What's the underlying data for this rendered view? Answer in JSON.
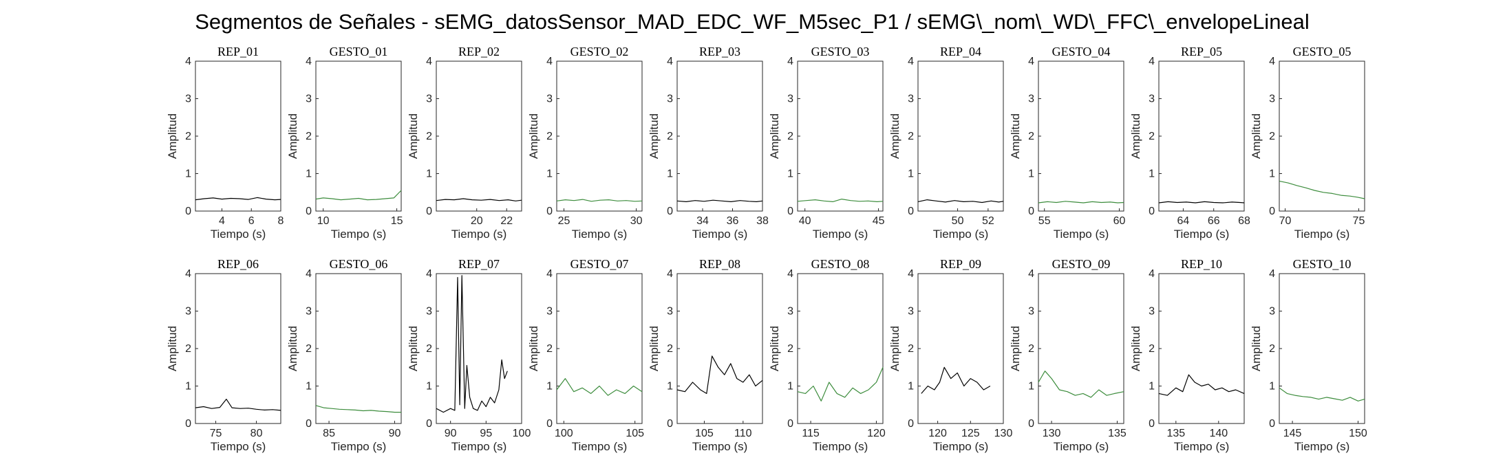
{
  "figure": {
    "title": "Segmentos de Señales - sEMG_datosSensor_MAD_EDC_WF_M5sec_P1 / sEMG\\_nom\\_WD\\_FFC\\_envelopeLineal"
  },
  "colors": {
    "rep": "#000000",
    "gesto": "#3c8c3c",
    "axis": "#262626"
  },
  "chart_data": [
    {
      "type": "line",
      "title": "REP_01",
      "xlabel": "Tiempo (s)",
      "ylabel": "Amplitud",
      "xlim": [
        2.2,
        8
      ],
      "ylim": [
        0,
        4
      ],
      "xticks": [
        4,
        6,
        8
      ],
      "yticks": [
        0,
        1,
        2,
        3,
        4
      ],
      "color": "rep",
      "series": [
        {
          "x": [
            2.2,
            2.8,
            3.4,
            4,
            4.6,
            5.2,
            5.8,
            6.4,
            7,
            7.6,
            8
          ],
          "y": [
            0.3,
            0.33,
            0.35,
            0.32,
            0.34,
            0.33,
            0.31,
            0.36,
            0.32,
            0.3,
            0.31
          ]
        }
      ]
    },
    {
      "type": "line",
      "title": "GESTO_01",
      "xlabel": "Tiempo (s)",
      "ylabel": "Amplitud",
      "xlim": [
        9.5,
        15.3
      ],
      "ylim": [
        0,
        4
      ],
      "xticks": [
        10,
        15
      ],
      "yticks": [
        0,
        1,
        2,
        3,
        4
      ],
      "color": "gesto",
      "series": [
        {
          "x": [
            9.5,
            10,
            10.6,
            11.2,
            11.8,
            12.4,
            13,
            13.6,
            14.2,
            14.8,
            15.3
          ],
          "y": [
            0.32,
            0.35,
            0.33,
            0.3,
            0.32,
            0.34,
            0.3,
            0.31,
            0.33,
            0.35,
            0.55
          ]
        }
      ]
    },
    {
      "type": "line",
      "title": "REP_02",
      "xlabel": "Tiempo (s)",
      "ylabel": "Amplitud",
      "xlim": [
        17.3,
        23
      ],
      "ylim": [
        0,
        4
      ],
      "xticks": [
        20,
        22
      ],
      "yticks": [
        0,
        1,
        2,
        3,
        4
      ],
      "color": "rep",
      "series": [
        {
          "x": [
            17.3,
            17.9,
            18.5,
            19.1,
            19.7,
            20.3,
            20.9,
            21.5,
            22.1,
            22.6,
            23
          ],
          "y": [
            0.28,
            0.31,
            0.3,
            0.33,
            0.3,
            0.29,
            0.31,
            0.28,
            0.3,
            0.27,
            0.29
          ]
        }
      ]
    },
    {
      "type": "line",
      "title": "GESTO_02",
      "xlabel": "Tiempo (s)",
      "ylabel": "Amplitud",
      "xlim": [
        24.5,
        30.4
      ],
      "ylim": [
        0,
        4
      ],
      "xticks": [
        25,
        30
      ],
      "yticks": [
        0,
        1,
        2,
        3,
        4
      ],
      "color": "gesto",
      "series": [
        {
          "x": [
            24.5,
            25.1,
            25.7,
            26.3,
            26.9,
            27.5,
            28.1,
            28.7,
            29.3,
            29.9,
            30.4
          ],
          "y": [
            0.27,
            0.3,
            0.28,
            0.31,
            0.26,
            0.29,
            0.3,
            0.27,
            0.28,
            0.26,
            0.27
          ]
        }
      ]
    },
    {
      "type": "line",
      "title": "REP_03",
      "xlabel": "Tiempo (s)",
      "ylabel": "Amplitud",
      "xlim": [
        32.3,
        38
      ],
      "ylim": [
        0,
        4
      ],
      "xticks": [
        34,
        36,
        38
      ],
      "yticks": [
        0,
        1,
        2,
        3,
        4
      ],
      "color": "rep",
      "series": [
        {
          "x": [
            32.3,
            32.9,
            33.5,
            34.1,
            34.7,
            35.3,
            35.9,
            36.5,
            37.1,
            37.6,
            38
          ],
          "y": [
            0.27,
            0.25,
            0.28,
            0.26,
            0.29,
            0.27,
            0.25,
            0.28,
            0.26,
            0.25,
            0.27
          ]
        }
      ]
    },
    {
      "type": "line",
      "title": "GESTO_03",
      "xlabel": "Tiempo (s)",
      "ylabel": "Amplitud",
      "xlim": [
        39.5,
        45.3
      ],
      "ylim": [
        0,
        4
      ],
      "xticks": [
        40,
        45
      ],
      "yticks": [
        0,
        1,
        2,
        3,
        4
      ],
      "color": "gesto",
      "series": [
        {
          "x": [
            39.5,
            40.1,
            40.7,
            41.3,
            41.9,
            42.5,
            43.1,
            43.7,
            44.3,
            44.9,
            45.3
          ],
          "y": [
            0.26,
            0.28,
            0.3,
            0.27,
            0.25,
            0.32,
            0.28,
            0.26,
            0.27,
            0.25,
            0.26
          ]
        }
      ]
    },
    {
      "type": "line",
      "title": "REP_04",
      "xlabel": "Tiempo (s)",
      "ylabel": "Amplitud",
      "xlim": [
        47.4,
        53
      ],
      "ylim": [
        0,
        4
      ],
      "xticks": [
        50,
        52
      ],
      "yticks": [
        0,
        1,
        2,
        3,
        4
      ],
      "color": "rep",
      "series": [
        {
          "x": [
            47.4,
            48,
            48.6,
            49.2,
            49.8,
            50.4,
            51,
            51.6,
            52.2,
            52.7,
            53
          ],
          "y": [
            0.25,
            0.3,
            0.27,
            0.24,
            0.28,
            0.25,
            0.26,
            0.23,
            0.27,
            0.24,
            0.26
          ]
        }
      ]
    },
    {
      "type": "line",
      "title": "GESTO_04",
      "xlabel": "Tiempo (s)",
      "ylabel": "Amplitud",
      "xlim": [
        54.6,
        60.3
      ],
      "ylim": [
        0,
        4
      ],
      "xticks": [
        55,
        60
      ],
      "yticks": [
        0,
        1,
        2,
        3,
        4
      ],
      "color": "gesto",
      "series": [
        {
          "x": [
            54.6,
            55.2,
            55.8,
            56.4,
            57,
            57.6,
            58.2,
            58.8,
            59.4,
            59.9,
            60.3
          ],
          "y": [
            0.22,
            0.25,
            0.23,
            0.26,
            0.24,
            0.22,
            0.25,
            0.23,
            0.24,
            0.22,
            0.23
          ]
        }
      ]
    },
    {
      "type": "line",
      "title": "REP_05",
      "xlabel": "Tiempo (s)",
      "ylabel": "Amplitud",
      "xlim": [
        62.4,
        68
      ],
      "ylim": [
        0,
        4
      ],
      "xticks": [
        64,
        66,
        68
      ],
      "yticks": [
        0,
        1,
        2,
        3,
        4
      ],
      "color": "rep",
      "series": [
        {
          "x": [
            62.4,
            63,
            63.6,
            64.2,
            64.8,
            65.4,
            66,
            66.6,
            67.2,
            67.7,
            68
          ],
          "y": [
            0.22,
            0.25,
            0.23,
            0.24,
            0.22,
            0.25,
            0.23,
            0.22,
            0.24,
            0.23,
            0.22
          ]
        }
      ]
    },
    {
      "type": "line",
      "title": "GESTO_05",
      "xlabel": "Tiempo (s)",
      "ylabel": "Amplitud",
      "xlim": [
        69.6,
        75.4
      ],
      "ylim": [
        0,
        4
      ],
      "xticks": [
        70,
        75
      ],
      "yticks": [
        0,
        1,
        2,
        3,
        4
      ],
      "color": "gesto",
      "series": [
        {
          "x": [
            69.6,
            70.2,
            70.8,
            71.4,
            72,
            72.6,
            73.2,
            73.8,
            74.4,
            74.9,
            75.4
          ],
          "y": [
            0.8,
            0.75,
            0.68,
            0.62,
            0.55,
            0.5,
            0.47,
            0.42,
            0.4,
            0.37,
            0.33
          ]
        }
      ]
    },
    {
      "type": "line",
      "title": "REP_06",
      "xlabel": "Tiempo (s)",
      "ylabel": "Amplitud",
      "xlim": [
        72.5,
        83
      ],
      "ylim": [
        0,
        4
      ],
      "xticks": [
        75,
        80
      ],
      "yticks": [
        0,
        1,
        2,
        3,
        4
      ],
      "color": "rep",
      "series": [
        {
          "x": [
            72.5,
            73.5,
            74.5,
            75.5,
            76.3,
            77,
            78,
            79,
            80,
            81,
            82,
            83
          ],
          "y": [
            0.42,
            0.45,
            0.4,
            0.43,
            0.65,
            0.42,
            0.4,
            0.41,
            0.38,
            0.36,
            0.37,
            0.35
          ]
        }
      ]
    },
    {
      "type": "line",
      "title": "GESTO_06",
      "xlabel": "Tiempo (s)",
      "ylabel": "Amplitud",
      "xlim": [
        84,
        90.5
      ],
      "ylim": [
        0,
        4
      ],
      "xticks": [
        85,
        90
      ],
      "yticks": [
        0,
        1,
        2,
        3,
        4
      ],
      "color": "gesto",
      "series": [
        {
          "x": [
            84,
            84.6,
            85.2,
            85.8,
            86.4,
            87,
            87.6,
            88.2,
            88.8,
            89.4,
            90,
            90.5
          ],
          "y": [
            0.48,
            0.42,
            0.4,
            0.38,
            0.37,
            0.36,
            0.34,
            0.35,
            0.33,
            0.32,
            0.3,
            0.3
          ]
        }
      ]
    },
    {
      "type": "line",
      "title": "REP_07",
      "xlabel": "Tiempo (s)",
      "ylabel": "Amplitud",
      "xlim": [
        88,
        100
      ],
      "ylim": [
        0,
        4
      ],
      "xticks": [
        90,
        95,
        100
      ],
      "yticks": [
        0,
        1,
        2,
        3,
        4
      ],
      "color": "rep",
      "series": [
        {
          "x": [
            88,
            89,
            90,
            90.6,
            91,
            91.3,
            91.6,
            92,
            92.3,
            92.7,
            93.2,
            93.8,
            94.4,
            95,
            95.6,
            96.2,
            96.8,
            97.2,
            97.6,
            98
          ],
          "y": [
            0.4,
            0.3,
            0.4,
            0.35,
            3.9,
            0.5,
            3.95,
            0.4,
            1.55,
            0.7,
            0.4,
            0.35,
            0.6,
            0.45,
            0.7,
            0.55,
            0.9,
            1.7,
            1.2,
            1.4
          ]
        }
      ]
    },
    {
      "type": "line",
      "title": "GESTO_07",
      "xlabel": "Tiempo (s)",
      "ylabel": "Amplitud",
      "xlim": [
        99.5,
        105.5
      ],
      "ylim": [
        0,
        4
      ],
      "xticks": [
        100,
        105
      ],
      "yticks": [
        0,
        1,
        2,
        3,
        4
      ],
      "color": "gesto",
      "series": [
        {
          "x": [
            99.5,
            100.1,
            100.7,
            101.3,
            101.9,
            102.5,
            103.1,
            103.7,
            104.3,
            104.9,
            105.5
          ],
          "y": [
            0.9,
            1.2,
            0.85,
            0.95,
            0.8,
            1,
            0.75,
            0.9,
            0.8,
            1,
            0.85
          ]
        }
      ]
    },
    {
      "type": "line",
      "title": "REP_08",
      "xlabel": "Tiempo (s)",
      "ylabel": "Amplitud",
      "xlim": [
        101.5,
        112.5
      ],
      "ylim": [
        0,
        4
      ],
      "xticks": [
        105,
        110
      ],
      "yticks": [
        0,
        1,
        2,
        3,
        4
      ],
      "color": "rep",
      "series": [
        {
          "x": [
            101.5,
            102.5,
            103.5,
            104.5,
            105.3,
            106,
            106.8,
            107.6,
            108.4,
            109.2,
            110,
            110.8,
            111.6,
            112.5
          ],
          "y": [
            0.9,
            0.85,
            1.1,
            0.9,
            0.8,
            1.8,
            1.5,
            1.3,
            1.6,
            1.2,
            1.1,
            1.3,
            1,
            1.15
          ]
        }
      ]
    },
    {
      "type": "line",
      "title": "GESTO_08",
      "xlabel": "Tiempo (s)",
      "ylabel": "Amplitud",
      "xlim": [
        114,
        120.5
      ],
      "ylim": [
        0,
        4
      ],
      "xticks": [
        115,
        120
      ],
      "yticks": [
        0,
        1,
        2,
        3,
        4
      ],
      "color": "gesto",
      "series": [
        {
          "x": [
            114,
            114.6,
            115.2,
            115.8,
            116.4,
            117,
            117.6,
            118.2,
            118.8,
            119.4,
            120,
            120.5
          ],
          "y": [
            0.85,
            0.8,
            1,
            0.6,
            1.1,
            0.8,
            0.7,
            0.95,
            0.8,
            0.9,
            1.1,
            1.5
          ]
        }
      ]
    },
    {
      "type": "line",
      "title": "REP_09",
      "xlabel": "Tiempo (s)",
      "ylabel": "Amplitud",
      "xlim": [
        117,
        130
      ],
      "ylim": [
        0,
        4
      ],
      "xticks": [
        120,
        125,
        130
      ],
      "yticks": [
        0,
        1,
        2,
        3,
        4
      ],
      "color": "rep",
      "series": [
        {
          "x": [
            117.5,
            118.5,
            119.5,
            120.3,
            121,
            122,
            123,
            124,
            125,
            126,
            127,
            128
          ],
          "y": [
            0.8,
            1,
            0.9,
            1.1,
            1.5,
            1.2,
            1.35,
            1,
            1.2,
            1.1,
            0.9,
            1
          ]
        }
      ]
    },
    {
      "type": "line",
      "title": "GESTO_09",
      "xlabel": "Tiempo (s)",
      "ylabel": "Amplitud",
      "xlim": [
        129,
        135.5
      ],
      "ylim": [
        0,
        4
      ],
      "xticks": [
        130,
        135
      ],
      "yticks": [
        0,
        1,
        2,
        3,
        4
      ],
      "color": "gesto",
      "series": [
        {
          "x": [
            129,
            129.5,
            130,
            130.6,
            131.2,
            131.8,
            132.4,
            133,
            133.6,
            134.2,
            134.8,
            135.5
          ],
          "y": [
            1.1,
            1.4,
            1.2,
            0.9,
            0.85,
            0.75,
            0.8,
            0.7,
            0.9,
            0.75,
            0.8,
            0.85
          ]
        }
      ]
    },
    {
      "type": "line",
      "title": "REP_10",
      "xlabel": "Tiempo (s)",
      "ylabel": "Amplitud",
      "xlim": [
        133,
        143
      ],
      "ylim": [
        0,
        4
      ],
      "xticks": [
        135,
        140
      ],
      "yticks": [
        0,
        1,
        2,
        3,
        4
      ],
      "color": "rep",
      "series": [
        {
          "x": [
            133,
            134,
            135,
            135.8,
            136.5,
            137.2,
            138,
            138.8,
            139.6,
            140.4,
            141.2,
            142,
            143
          ],
          "y": [
            0.8,
            0.75,
            0.95,
            0.85,
            1.3,
            1.1,
            1,
            1.05,
            0.9,
            0.95,
            0.85,
            0.9,
            0.8
          ]
        }
      ]
    },
    {
      "type": "line",
      "title": "GESTO_10",
      "xlabel": "Tiempo (s)",
      "ylabel": "Amplitud",
      "xlim": [
        144,
        150.5
      ],
      "ylim": [
        0,
        4
      ],
      "xticks": [
        145,
        150
      ],
      "yticks": [
        0,
        1,
        2,
        3,
        4
      ],
      "color": "gesto",
      "series": [
        {
          "x": [
            144,
            144.6,
            145.2,
            145.8,
            146.4,
            147,
            147.6,
            148.2,
            148.8,
            149.4,
            150,
            150.5
          ],
          "y": [
            0.95,
            0.8,
            0.75,
            0.72,
            0.7,
            0.65,
            0.7,
            0.66,
            0.62,
            0.7,
            0.6,
            0.65
          ]
        }
      ]
    }
  ]
}
